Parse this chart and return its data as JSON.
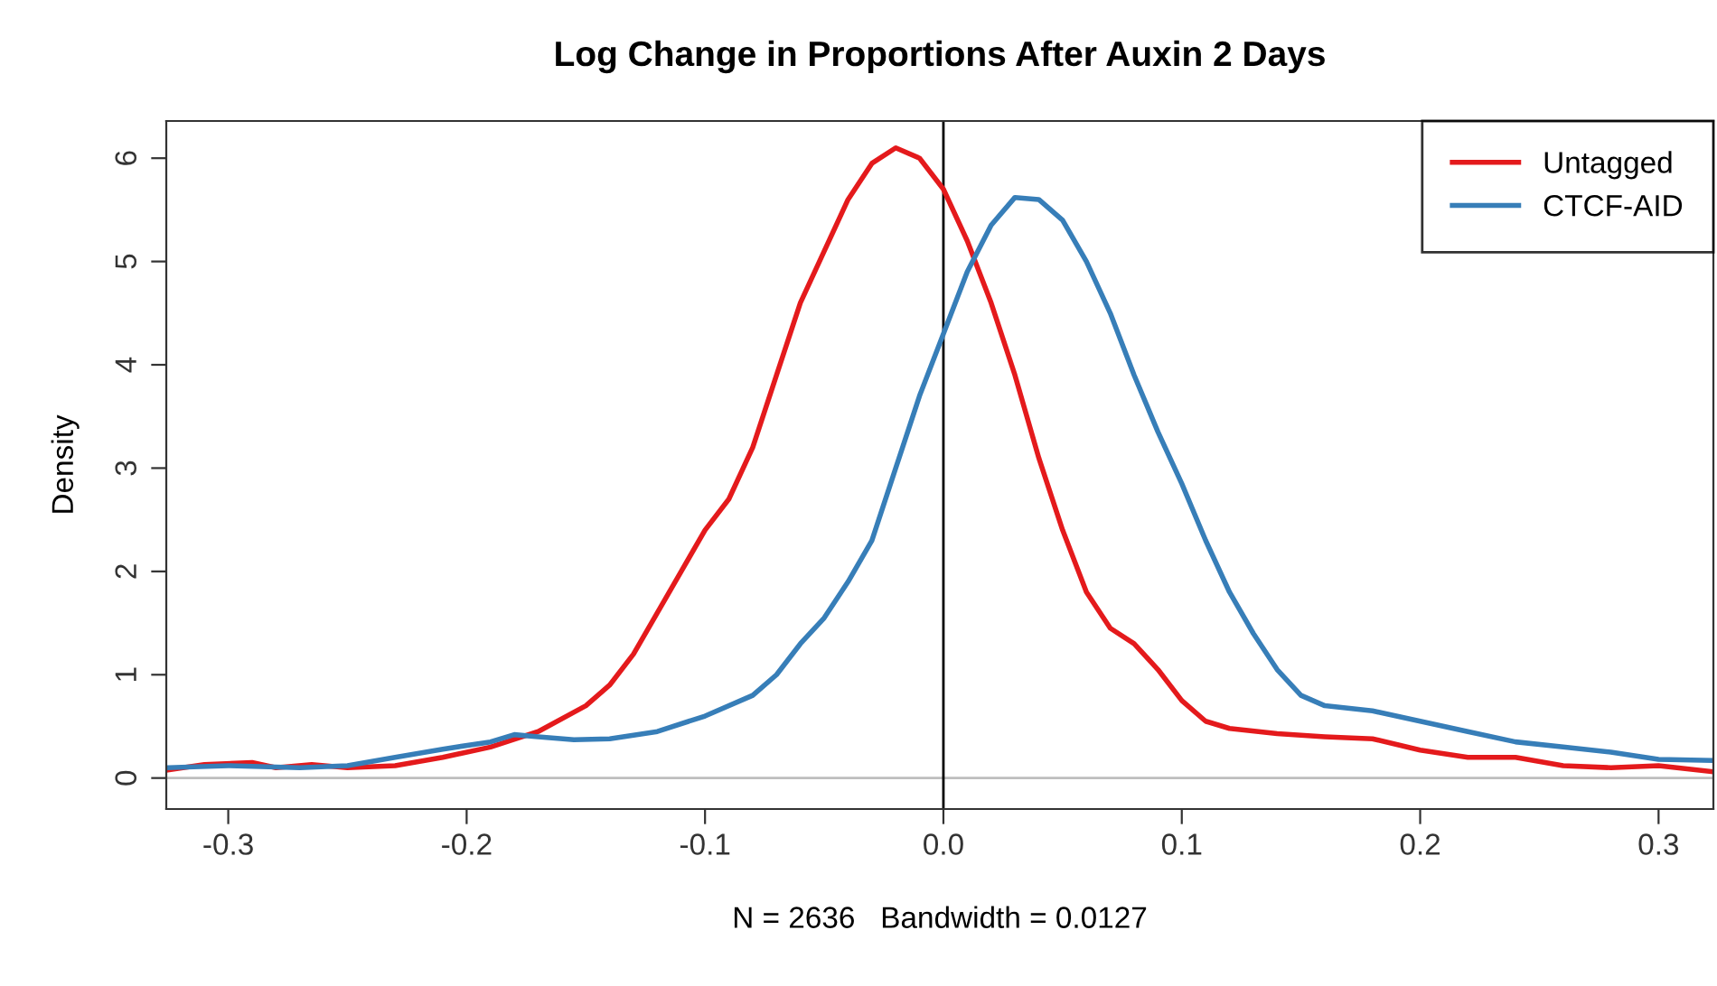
{
  "chart_data": {
    "type": "line",
    "title": "Log Change in Proportions After Auxin 2 Days",
    "xlabel": "N = 2636   Bandwidth = 0.0127",
    "ylabel": "Density",
    "xlim": [
      -0.326,
      0.323
    ],
    "ylim": [
      -0.3,
      6.36
    ],
    "xticks": [
      {
        "value": -0.3,
        "label": "-0.3"
      },
      {
        "value": -0.2,
        "label": "-0.2"
      },
      {
        "value": -0.1,
        "label": "-0.1"
      },
      {
        "value": 0.0,
        "label": "0.0"
      },
      {
        "value": 0.1,
        "label": "0.1"
      },
      {
        "value": 0.2,
        "label": "0.2"
      },
      {
        "value": 0.3,
        "label": "0.3"
      }
    ],
    "yticks": [
      0,
      1,
      2,
      3,
      4,
      5,
      6
    ],
    "grid": false,
    "legend": "top right",
    "marker": "none",
    "line_style": "solid",
    "ref_lines": [
      {
        "axis": "y",
        "value": 0,
        "color": "#bebebe"
      },
      {
        "axis": "x",
        "value": 0,
        "color": "#000000"
      }
    ],
    "series": [
      {
        "name": "Untagged",
        "color": "#e41a1c",
        "x": [
          -0.325,
          -0.31,
          -0.29,
          -0.28,
          -0.265,
          -0.25,
          -0.23,
          -0.21,
          -0.19,
          -0.17,
          -0.15,
          -0.14,
          -0.13,
          -0.12,
          -0.11,
          -0.1,
          -0.09,
          -0.08,
          -0.07,
          -0.06,
          -0.05,
          -0.04,
          -0.03,
          -0.02,
          -0.01,
          0.0,
          0.01,
          0.02,
          0.03,
          0.04,
          0.05,
          0.06,
          0.07,
          0.08,
          0.09,
          0.1,
          0.11,
          0.12,
          0.14,
          0.16,
          0.18,
          0.2,
          0.22,
          0.24,
          0.26,
          0.28,
          0.3,
          0.323
        ],
        "values": [
          0.08,
          0.13,
          0.15,
          0.1,
          0.13,
          0.1,
          0.12,
          0.2,
          0.3,
          0.45,
          0.7,
          0.9,
          1.2,
          1.6,
          2.0,
          2.4,
          2.7,
          3.2,
          3.9,
          4.6,
          5.1,
          5.6,
          5.95,
          6.1,
          6.0,
          5.7,
          5.2,
          4.6,
          3.9,
          3.1,
          2.4,
          1.8,
          1.45,
          1.3,
          1.05,
          0.75,
          0.55,
          0.48,
          0.43,
          0.4,
          0.38,
          0.27,
          0.2,
          0.2,
          0.12,
          0.1,
          0.12,
          0.06
        ]
      },
      {
        "name": "CTCF-AID",
        "color": "#377eb8",
        "x": [
          -0.325,
          -0.3,
          -0.27,
          -0.25,
          -0.23,
          -0.21,
          -0.19,
          -0.18,
          -0.17,
          -0.155,
          -0.14,
          -0.12,
          -0.1,
          -0.08,
          -0.07,
          -0.06,
          -0.05,
          -0.04,
          -0.03,
          -0.02,
          -0.01,
          0.0,
          0.01,
          0.02,
          0.03,
          0.04,
          0.05,
          0.06,
          0.07,
          0.08,
          0.09,
          0.1,
          0.11,
          0.12,
          0.13,
          0.14,
          0.15,
          0.16,
          0.18,
          0.2,
          0.22,
          0.24,
          0.26,
          0.28,
          0.3,
          0.323
        ],
        "values": [
          0.1,
          0.12,
          0.1,
          0.12,
          0.2,
          0.28,
          0.35,
          0.42,
          0.4,
          0.37,
          0.38,
          0.45,
          0.6,
          0.8,
          1.0,
          1.3,
          1.55,
          1.9,
          2.3,
          3.0,
          3.7,
          4.3,
          4.9,
          5.35,
          5.62,
          5.6,
          5.4,
          5.0,
          4.5,
          3.9,
          3.35,
          2.85,
          2.3,
          1.8,
          1.4,
          1.05,
          0.8,
          0.7,
          0.65,
          0.55,
          0.45,
          0.35,
          0.3,
          0.25,
          0.18,
          0.17
        ]
      }
    ]
  }
}
